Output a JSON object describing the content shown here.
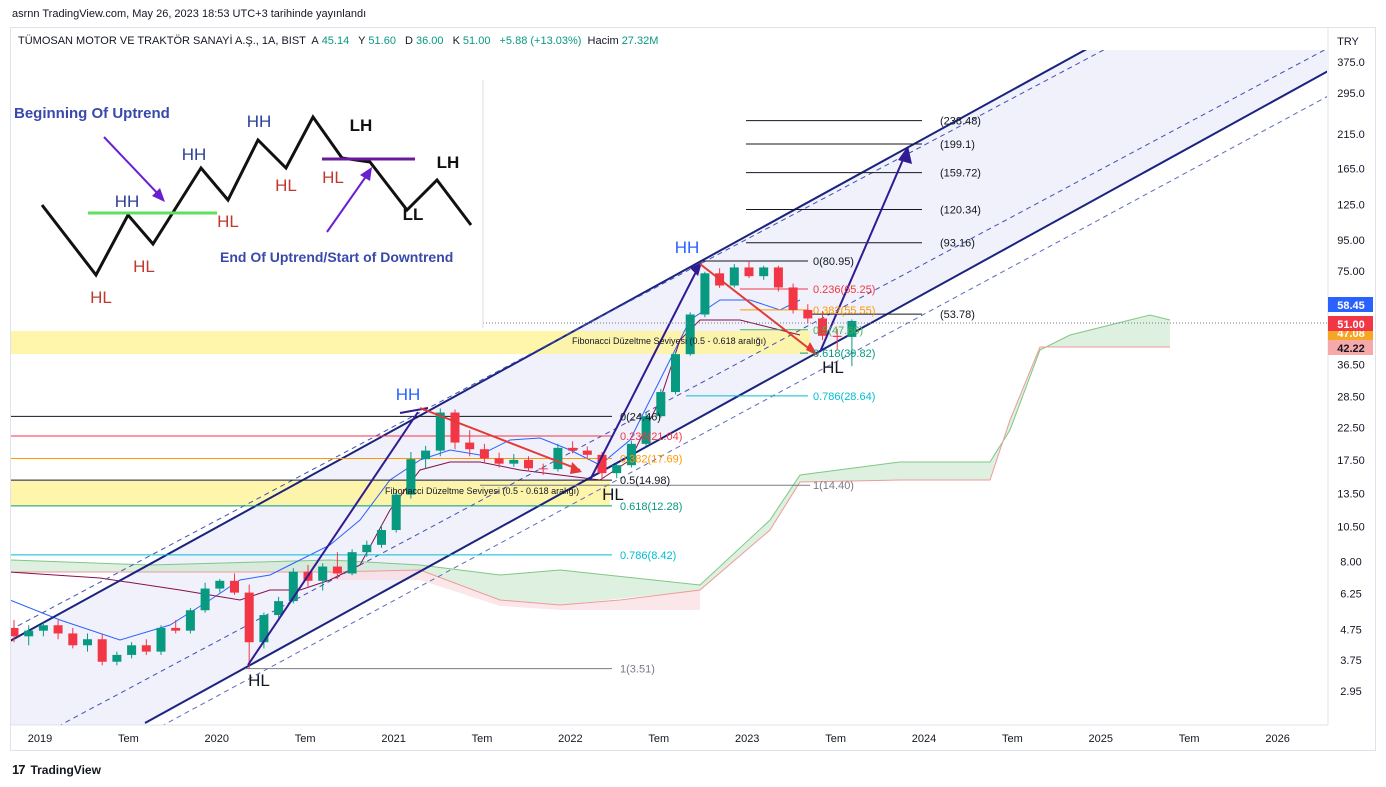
{
  "header": {
    "published_by": "asrnn TradingView.com, May 26, 2023 18:53 UTC+3 tarihinde yayınlandı"
  },
  "legend": {
    "symbol": "TÜMOSAN MOTOR VE TRAKTÖR SANAYİ A.Ş., 1A, BIST",
    "open_label": "A",
    "open": "45.14",
    "high_label": "Y",
    "high": "51.60",
    "low_label": "D",
    "low": "36.00",
    "close_label": "K",
    "close": "51.00",
    "change": "+5.88 (+13.03%)",
    "volume_label": "Hacim",
    "volume": "27.32M"
  },
  "chart_data": {
    "type": "candlestick",
    "interval": "1A",
    "currency": "TRY",
    "scale": "log",
    "y_ticks": [
      "375.0",
      "295.0",
      "215.0",
      "165.0",
      "125.0",
      "95.00",
      "75.00",
      "36.50",
      "28.50",
      "22.50",
      "17.50",
      "13.50",
      "10.50",
      "8.00",
      "6.25",
      "4.75",
      "3.75",
      "2.95"
    ],
    "x_ticks": [
      "2019",
      "Tem",
      "2020",
      "Tem",
      "2021",
      "Tem",
      "2022",
      "Tem",
      "2023",
      "Tem",
      "2024",
      "Tem",
      "2025",
      "Tem",
      "2026"
    ],
    "price_badges": [
      {
        "value": "58.45",
        "color": "#2962ff"
      },
      {
        "value": "51.00",
        "color": "#f23645"
      },
      {
        "value": "47.08",
        "color": "#f5a623"
      },
      {
        "value": "42.22",
        "color": "#f7a8a8"
      }
    ],
    "candles": [
      {
        "o": 4.8,
        "h": 5.1,
        "l": 4.3,
        "c": 4.5
      },
      {
        "o": 4.5,
        "h": 4.9,
        "l": 4.2,
        "c": 4.7
      },
      {
        "o": 4.7,
        "h": 5.0,
        "l": 4.5,
        "c": 4.9
      },
      {
        "o": 4.9,
        "h": 5.1,
        "l": 4.4,
        "c": 4.6
      },
      {
        "o": 4.6,
        "h": 4.8,
        "l": 4.1,
        "c": 4.2
      },
      {
        "o": 4.2,
        "h": 4.6,
        "l": 4.0,
        "c": 4.4
      },
      {
        "o": 4.4,
        "h": 4.6,
        "l": 3.6,
        "c": 3.7
      },
      {
        "o": 3.7,
        "h": 4.0,
        "l": 3.6,
        "c": 3.9
      },
      {
        "o": 3.9,
        "h": 4.3,
        "l": 3.8,
        "c": 4.2
      },
      {
        "o": 4.2,
        "h": 4.4,
        "l": 3.9,
        "c": 4.0
      },
      {
        "o": 4.0,
        "h": 4.9,
        "l": 3.9,
        "c": 4.8
      },
      {
        "o": 4.8,
        "h": 5.1,
        "l": 4.6,
        "c": 4.7
      },
      {
        "o": 4.7,
        "h": 5.6,
        "l": 4.6,
        "c": 5.5
      },
      {
        "o": 5.5,
        "h": 6.8,
        "l": 5.4,
        "c": 6.5
      },
      {
        "o": 6.5,
        "h": 7.0,
        "l": 6.3,
        "c": 6.9
      },
      {
        "o": 6.9,
        "h": 7.3,
        "l": 6.2,
        "c": 6.3
      },
      {
        "o": 6.3,
        "h": 6.7,
        "l": 3.5,
        "c": 4.3
      },
      {
        "o": 4.3,
        "h": 5.4,
        "l": 4.1,
        "c": 5.3
      },
      {
        "o": 5.3,
        "h": 6.1,
        "l": 5.2,
        "c": 5.9
      },
      {
        "o": 5.9,
        "h": 7.6,
        "l": 5.8,
        "c": 7.4
      },
      {
        "o": 7.4,
        "h": 7.8,
        "l": 6.6,
        "c": 6.9
      },
      {
        "o": 6.9,
        "h": 7.9,
        "l": 6.4,
        "c": 7.7
      },
      {
        "o": 7.7,
        "h": 8.6,
        "l": 7.0,
        "c": 7.3
      },
      {
        "o": 7.3,
        "h": 8.8,
        "l": 7.2,
        "c": 8.6
      },
      {
        "o": 8.6,
        "h": 9.4,
        "l": 8.3,
        "c": 9.1
      },
      {
        "o": 9.1,
        "h": 10.6,
        "l": 8.9,
        "c": 10.2
      },
      {
        "o": 10.2,
        "h": 13.8,
        "l": 10.0,
        "c": 13.4
      },
      {
        "o": 13.4,
        "h": 18.6,
        "l": 13.0,
        "c": 17.6
      },
      {
        "o": 17.6,
        "h": 19.5,
        "l": 16.4,
        "c": 18.8
      },
      {
        "o": 18.8,
        "h": 26.0,
        "l": 18.0,
        "c": 25.2
      },
      {
        "o": 25.2,
        "h": 25.8,
        "l": 19.0,
        "c": 20.0
      },
      {
        "o": 20.0,
        "h": 22.0,
        "l": 18.0,
        "c": 19.0
      },
      {
        "o": 19.0,
        "h": 19.8,
        "l": 17.2,
        "c": 17.7
      },
      {
        "o": 17.7,
        "h": 18.5,
        "l": 16.5,
        "c": 17.0
      },
      {
        "o": 17.0,
        "h": 18.3,
        "l": 16.6,
        "c": 17.5
      },
      {
        "o": 17.5,
        "h": 18.0,
        "l": 16.0,
        "c": 16.4
      },
      {
        "o": 16.4,
        "h": 17.0,
        "l": 15.6,
        "c": 16.3
      },
      {
        "o": 16.3,
        "h": 19.8,
        "l": 16.0,
        "c": 19.2
      },
      {
        "o": 19.2,
        "h": 20.2,
        "l": 18.4,
        "c": 18.8
      },
      {
        "o": 18.8,
        "h": 19.4,
        "l": 17.6,
        "c": 18.2
      },
      {
        "o": 18.2,
        "h": 18.6,
        "l": 15.0,
        "c": 15.8
      },
      {
        "o": 15.8,
        "h": 17.0,
        "l": 15.2,
        "c": 16.8
      },
      {
        "o": 16.8,
        "h": 20.3,
        "l": 16.5,
        "c": 19.8
      },
      {
        "o": 19.8,
        "h": 25.2,
        "l": 19.5,
        "c": 24.5
      },
      {
        "o": 24.5,
        "h": 30.2,
        "l": 24.2,
        "c": 29.5
      },
      {
        "o": 29.5,
        "h": 40.2,
        "l": 29.0,
        "c": 39.5
      },
      {
        "o": 39.5,
        "h": 54.5,
        "l": 39.0,
        "c": 53.6
      },
      {
        "o": 53.6,
        "h": 74.5,
        "l": 52.5,
        "c": 73.6
      },
      {
        "o": 73.6,
        "h": 76.5,
        "l": 65.8,
        "c": 67.0
      },
      {
        "o": 67.0,
        "h": 79.0,
        "l": 66.0,
        "c": 77.0
      },
      {
        "o": 77.0,
        "h": 81.0,
        "l": 71.0,
        "c": 72.0
      },
      {
        "o": 72.0,
        "h": 78.0,
        "l": 70.0,
        "c": 77.0
      },
      {
        "o": 77.0,
        "h": 78.0,
        "l": 64.0,
        "c": 66.0
      },
      {
        "o": 66.0,
        "h": 68.0,
        "l": 54.0,
        "c": 55.5
      },
      {
        "o": 55.5,
        "h": 58.0,
        "l": 50.0,
        "c": 52.0
      },
      {
        "o": 52.0,
        "h": 55.0,
        "l": 44.0,
        "c": 45.5
      },
      {
        "o": 45.5,
        "h": 48.0,
        "l": 41.0,
        "c": 45.1
      },
      {
        "o": 45.1,
        "h": 51.6,
        "l": 36.0,
        "c": 51.0
      }
    ],
    "fib_labels": [
      {
        "label": "0(80.95)",
        "value": 80.95,
        "color": "#131722"
      },
      {
        "label": "0.236(65.25)",
        "value": 65.25,
        "color": "#f23645"
      },
      {
        "label": "0.382(55.55)",
        "value": 55.55,
        "color": "#ff9800"
      },
      {
        "label": "0.5(47.66)",
        "value": 47.66,
        "color": "#4caf50"
      },
      {
        "label": "0.618(39.82)",
        "value": 39.82,
        "color": "#089981"
      },
      {
        "label": "0.786(28.64)",
        "value": 28.64,
        "color": "#00bcd4"
      },
      {
        "label": "1(14.40)",
        "value": 14.4,
        "color": "#787b86"
      },
      {
        "label": "0(24.46)",
        "value": 24.46,
        "color": "#131722"
      },
      {
        "label": "0.236(21.04)",
        "value": 21.04,
        "color": "#f23645"
      },
      {
        "label": "0.382(17.69)",
        "value": 17.69,
        "color": "#ff9800"
      },
      {
        "label": "0.5(14.98)",
        "value": 14.98,
        "color": "#131722"
      },
      {
        "label": "0.618(12.28)",
        "value": 12.28,
        "color": "#089981"
      },
      {
        "label": "0.786(8.42)",
        "value": 8.42,
        "color": "#00bcd4"
      },
      {
        "label": "1(3.51)",
        "value": 3.51,
        "color": "#787b86"
      }
    ],
    "target_labels": [
      {
        "label": "(238.48)",
        "value": 238.48
      },
      {
        "label": "(199.1)",
        "value": 199.1
      },
      {
        "label": "(159.72)",
        "value": 159.72
      },
      {
        "label": "(120.34)",
        "value": 120.34
      },
      {
        "label": "(93.16)",
        "value": 93.16
      },
      {
        "label": "(53.78)",
        "value": 53.78
      }
    ],
    "fib_zone_label": "Fibonacci Düzeltme Seviyesi (0.5 - 0.618 aralığı)",
    "swing_labels": [
      {
        "text": "HL",
        "color": "#131722"
      },
      {
        "text": "HH",
        "color": "#2962ff"
      },
      {
        "text": "HL",
        "color": "#131722"
      },
      {
        "text": "HH",
        "color": "#2962ff"
      },
      {
        "text": "HL",
        "color": "#131722"
      }
    ],
    "diagram": {
      "title_top": "Beginning Of Uptrend",
      "title_bottom": "End Of Uptrend/Start of Downtrend",
      "labels": [
        {
          "text": "HL",
          "color": "#c0392b"
        },
        {
          "text": "HH",
          "color": "#2c3e9a"
        },
        {
          "text": "HL",
          "color": "#c0392b"
        },
        {
          "text": "HH",
          "color": "#2c3e9a"
        },
        {
          "text": "HL",
          "color": "#c0392b"
        },
        {
          "text": "HH",
          "color": "#2c3e9a"
        },
        {
          "text": "HL",
          "color": "#c0392b"
        },
        {
          "text": "LH",
          "color": "#111111"
        },
        {
          "text": "HL",
          "color": "#c0392b"
        },
        {
          "text": "LH",
          "color": "#111111"
        },
        {
          "text": "LL",
          "color": "#111111"
        }
      ]
    }
  },
  "footer": {
    "brand": "TradingView",
    "logo": "17"
  }
}
